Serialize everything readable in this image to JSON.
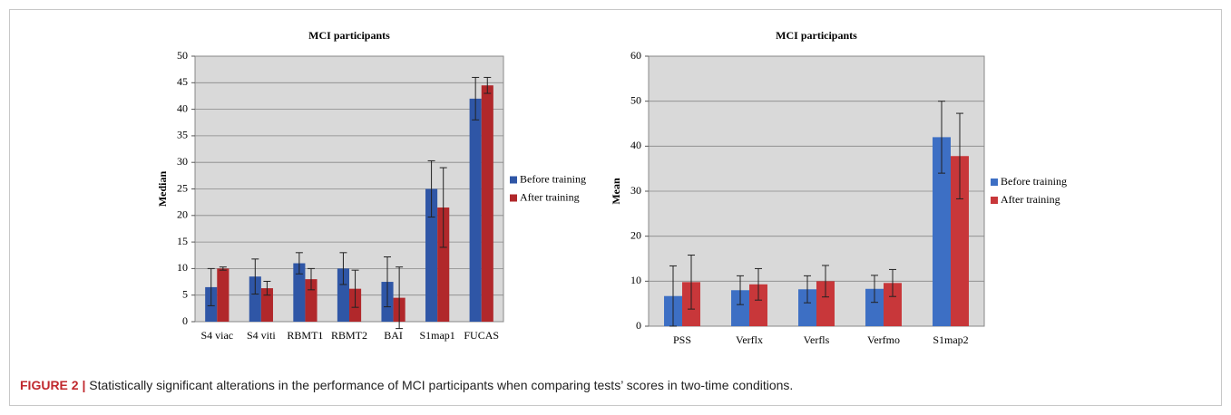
{
  "chart_data": [
    {
      "type": "bar",
      "title": "MCI participants",
      "y_label": "Median",
      "categories": [
        "S4 viac",
        "S4 viti",
        "RBMT1",
        "RBMT2",
        "BAI",
        "S1map1",
        "FUCAS"
      ],
      "series": [
        {
          "name": "Before training",
          "color": "#2f56a6",
          "values": [
            6.5,
            8.5,
            11,
            10,
            7.5,
            25,
            42
          ],
          "errors": [
            3.5,
            3.3,
            2,
            3,
            4.7,
            5.3,
            4
          ]
        },
        {
          "name": "After training",
          "color": "#b1282b",
          "values": [
            10,
            6.3,
            8,
            6.2,
            4.5,
            21.5,
            44.5
          ],
          "errors": [
            0.3,
            1.3,
            2,
            3.5,
            5.8,
            7.5,
            1.5
          ]
        }
      ],
      "ylim": [
        0,
        50
      ],
      "yticks": [
        0,
        5,
        10,
        15,
        20,
        25,
        30,
        35,
        40,
        45,
        50
      ],
      "grid": true,
      "legend": "right"
    },
    {
      "type": "bar",
      "title": "MCI participants",
      "y_label": "Mean",
      "categories": [
        "PSS",
        "Verflx",
        "Verfls",
        "Verfmo",
        "S1map2"
      ],
      "series": [
        {
          "name": "Before training",
          "color": "#3d6fc4",
          "values": [
            6.7,
            8,
            8.2,
            8.3,
            42
          ],
          "errors": [
            6.7,
            3.2,
            3,
            3,
            8
          ]
        },
        {
          "name": "After training",
          "color": "#c8373a",
          "values": [
            9.8,
            9.3,
            10,
            9.6,
            37.8
          ],
          "errors": [
            6,
            3.5,
            3.5,
            3,
            9.5
          ]
        }
      ],
      "ylim": [
        0,
        60
      ],
      "yticks": [
        0,
        10,
        20,
        30,
        40,
        50,
        60
      ],
      "grid": true,
      "legend": "right"
    }
  ],
  "caption": {
    "label": "FIGURE 2 |",
    "text": "Statistically significant alterations in the performance of MCI participants when comparing tests’ scores in two-time conditions."
  }
}
